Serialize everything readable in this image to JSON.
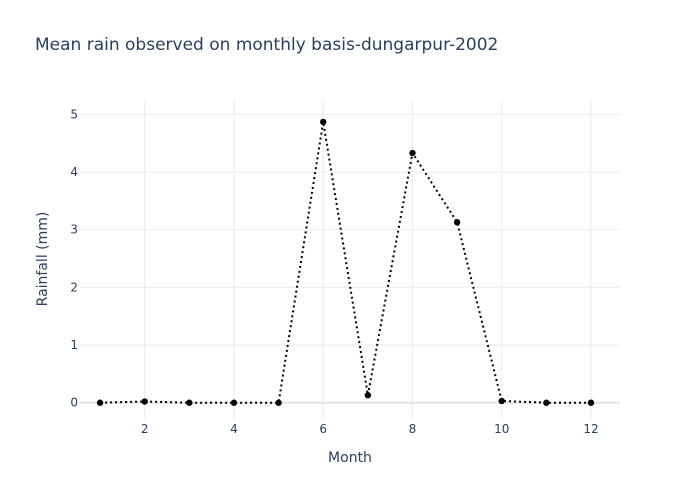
{
  "chart_data": {
    "type": "line",
    "title": "Mean rain observed on monthly basis-dungarpur-2002",
    "xlabel": "Month",
    "ylabel": "Rainfall (mm)",
    "xlim": [
      0.55,
      12.65
    ],
    "ylim": [
      -0.3,
      5.25
    ],
    "x_ticks": [
      2,
      4,
      6,
      8,
      10,
      12
    ],
    "y_ticks": [
      0,
      1,
      2,
      3,
      4,
      5
    ],
    "grid": true,
    "legend": "none",
    "line_style": "dotted",
    "color": "#000000",
    "series": [
      {
        "x": [
          1,
          2,
          3,
          4,
          5,
          6,
          7,
          8,
          9,
          10,
          11,
          12
        ],
        "values": [
          0.0,
          0.02,
          0.0,
          0.0,
          0.0,
          4.87,
          0.13,
          4.33,
          3.13,
          0.03,
          0.0,
          0.0
        ]
      }
    ]
  }
}
